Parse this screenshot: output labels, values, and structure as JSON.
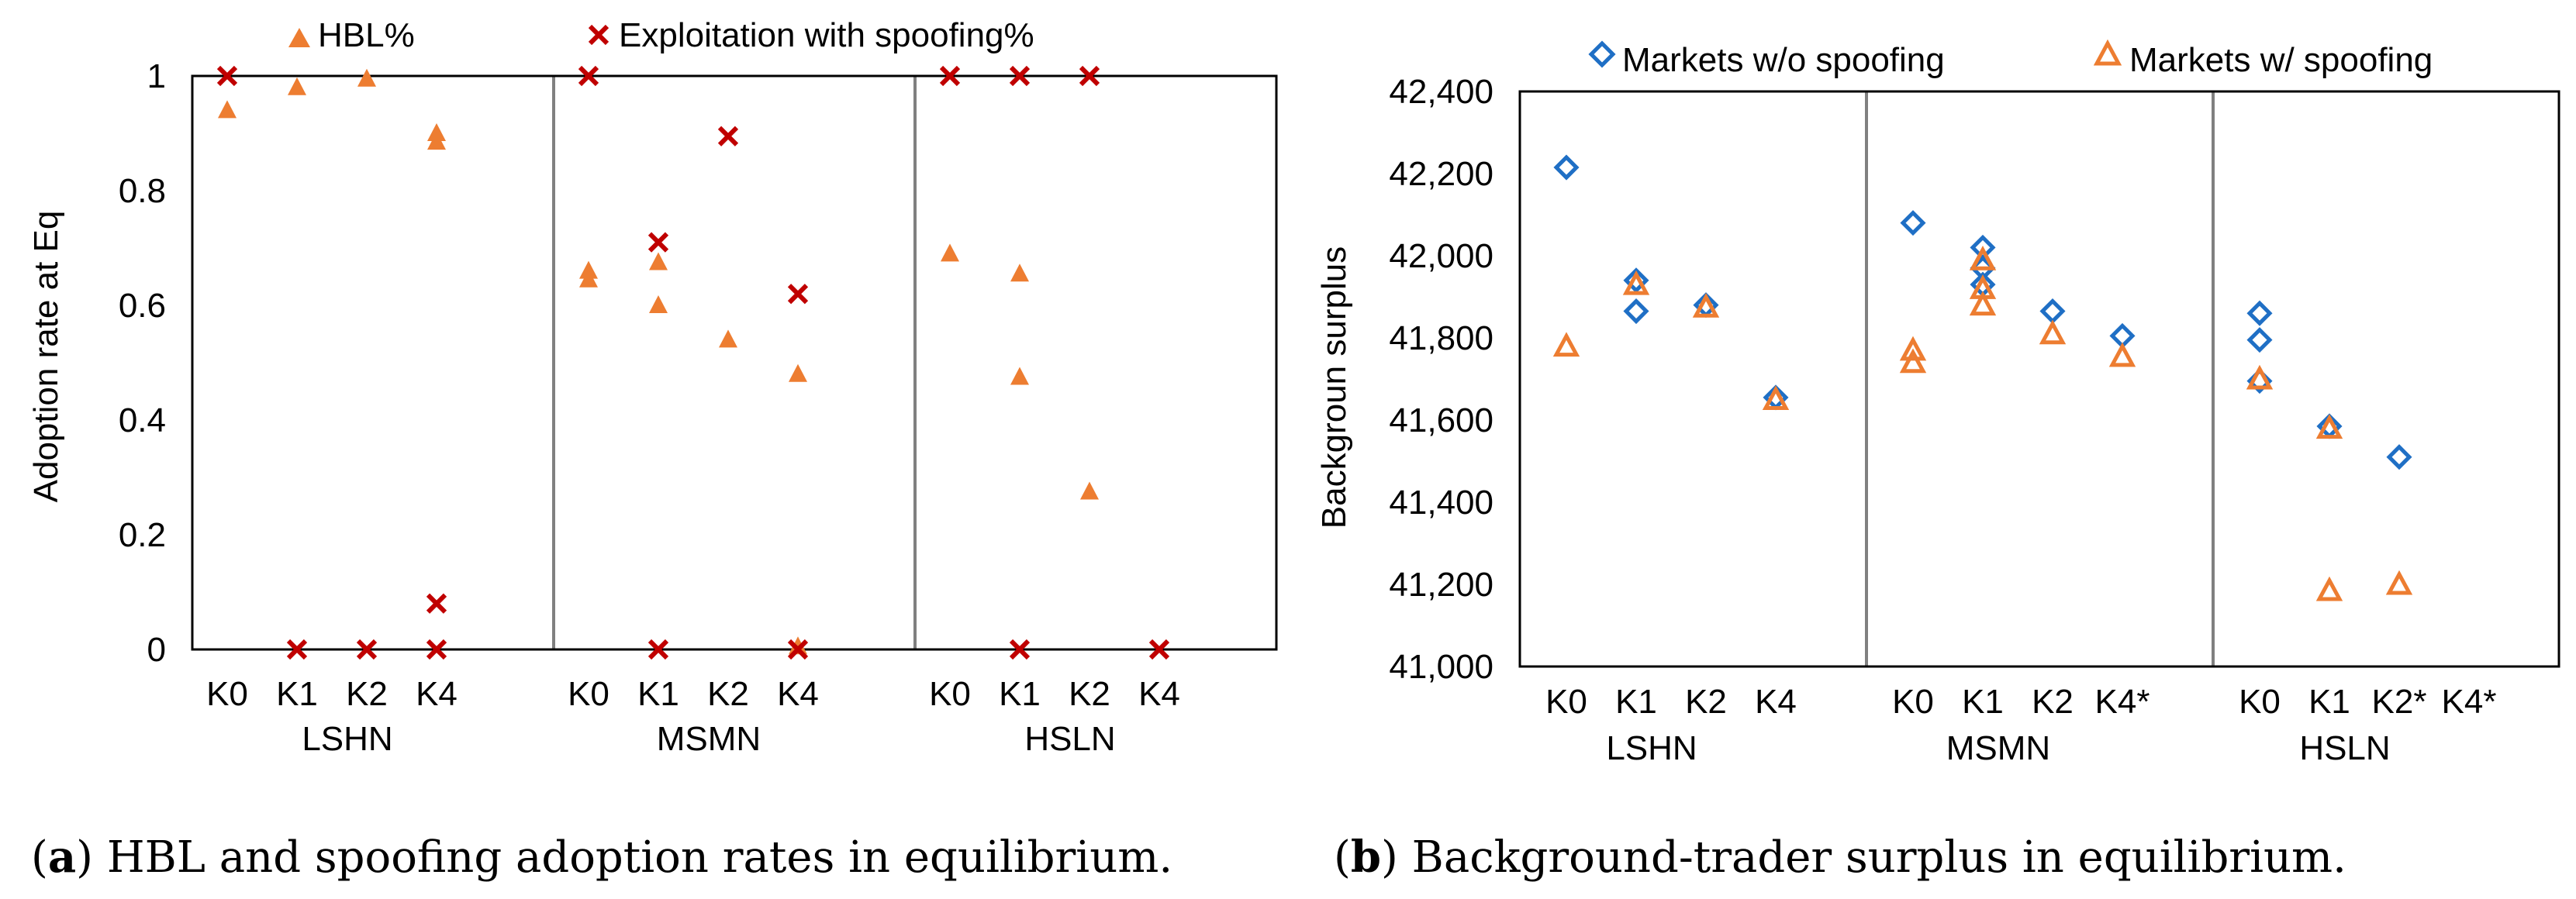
{
  "colors": {
    "orange": "#ED7D31",
    "red": "#C00000",
    "blue": "#1F6FC5",
    "axis": "#000000",
    "divider": "#808080"
  },
  "chart_data": [
    {
      "type": "scatter",
      "panel": "a",
      "caption_letter": "a",
      "caption_text": "HBL and spoofing adoption rates in equilibrium.",
      "ylabel": "Adoption rate at Eq",
      "ylim": [
        0,
        1
      ],
      "yticks": [
        0,
        0.2,
        0.4,
        0.6,
        0.8,
        1
      ],
      "ytick_labels": [
        "0",
        "0.2",
        "0.4",
        "0.6",
        "0.8",
        "1"
      ],
      "groups": [
        {
          "name": "LSHN",
          "categories": [
            "K0",
            "K1",
            "K2",
            "K4"
          ]
        },
        {
          "name": "MSMN",
          "categories": [
            "K0",
            "K1",
            "K2",
            "K4"
          ]
        },
        {
          "name": "HSLN",
          "categories": [
            "K0",
            "K1",
            "K2",
            "K4"
          ]
        }
      ],
      "series": [
        {
          "name": "HBL%",
          "marker": "triangle-filled",
          "color": "orange",
          "points": [
            {
              "group": 0,
              "cat": 0,
              "y": 0.94
            },
            {
              "group": 0,
              "cat": 1,
              "y": 0.98
            },
            {
              "group": 0,
              "cat": 2,
              "y": 0.995
            },
            {
              "group": 0,
              "cat": 3,
              "y": 0.9
            },
            {
              "group": 0,
              "cat": 3,
              "y": 0.885
            },
            {
              "group": 1,
              "cat": 0,
              "y": 0.66
            },
            {
              "group": 1,
              "cat": 0,
              "y": 0.645
            },
            {
              "group": 1,
              "cat": 1,
              "y": 0.675
            },
            {
              "group": 1,
              "cat": 1,
              "y": 0.6
            },
            {
              "group": 1,
              "cat": 2,
              "y": 0.54
            },
            {
              "group": 1,
              "cat": 3,
              "y": 0.48
            },
            {
              "group": 1,
              "cat": 3,
              "y": 0.005
            },
            {
              "group": 2,
              "cat": 0,
              "y": 0.69
            },
            {
              "group": 2,
              "cat": 1,
              "y": 0.655
            },
            {
              "group": 2,
              "cat": 1,
              "y": 0.475
            },
            {
              "group": 2,
              "cat": 2,
              "y": 0.275
            }
          ]
        },
        {
          "name": "Exploitation with spoofing%",
          "marker": "x",
          "color": "red",
          "points": [
            {
              "group": 0,
              "cat": 0,
              "y": 1.0
            },
            {
              "group": 0,
              "cat": 1,
              "y": 0.0
            },
            {
              "group": 0,
              "cat": 2,
              "y": 0.0
            },
            {
              "group": 0,
              "cat": 3,
              "y": 0.0
            },
            {
              "group": 0,
              "cat": 3,
              "y": 0.08
            },
            {
              "group": 1,
              "cat": 0,
              "y": 1.0
            },
            {
              "group": 1,
              "cat": 1,
              "y": 0.71
            },
            {
              "group": 1,
              "cat": 1,
              "y": 0.0
            },
            {
              "group": 1,
              "cat": 2,
              "y": 0.895
            },
            {
              "group": 1,
              "cat": 3,
              "y": 0.62
            },
            {
              "group": 1,
              "cat": 3,
              "y": 0.0
            },
            {
              "group": 2,
              "cat": 0,
              "y": 1.0
            },
            {
              "group": 2,
              "cat": 1,
              "y": 1.0
            },
            {
              "group": 2,
              "cat": 1,
              "y": 0.0
            },
            {
              "group": 2,
              "cat": 2,
              "y": 1.0
            },
            {
              "group": 2,
              "cat": 3,
              "y": 0.0
            }
          ]
        }
      ]
    },
    {
      "type": "scatter",
      "panel": "b",
      "caption_letter": "b",
      "caption_text": "Background-trader surplus in equilibrium.",
      "ylabel": "Backgroun surplus",
      "ylim": [
        41000,
        42400
      ],
      "yticks": [
        41000,
        41200,
        41400,
        41600,
        41800,
        42000,
        42200,
        42400
      ],
      "ytick_labels": [
        "41,000",
        "41,200",
        "41,400",
        "41,600",
        "41,800",
        "42,000",
        "42,200",
        "42,400"
      ],
      "groups": [
        {
          "name": "LSHN",
          "categories": [
            "K0",
            "K1",
            "K2",
            "K4"
          ]
        },
        {
          "name": "MSMN",
          "categories": [
            "K0",
            "K1",
            "K2",
            "K4*"
          ]
        },
        {
          "name": "HSLN",
          "categories": [
            "K0",
            "K1",
            "K2*",
            "K4*"
          ]
        }
      ],
      "series": [
        {
          "name": "Markets w/o spoofing",
          "marker": "diamond-open",
          "color": "blue",
          "points": [
            {
              "group": 0,
              "cat": 0,
              "y": 42215
            },
            {
              "group": 0,
              "cat": 1,
              "y": 41940
            },
            {
              "group": 0,
              "cat": 1,
              "y": 41865
            },
            {
              "group": 0,
              "cat": 2,
              "y": 41880
            },
            {
              "group": 0,
              "cat": 3,
              "y": 41655
            },
            {
              "group": 1,
              "cat": 0,
              "y": 42080
            },
            {
              "group": 1,
              "cat": 1,
              "y": 42020
            },
            {
              "group": 1,
              "cat": 1,
              "y": 41970
            },
            {
              "group": 1,
              "cat": 1,
              "y": 41930
            },
            {
              "group": 1,
              "cat": 2,
              "y": 41865
            },
            {
              "group": 1,
              "cat": 3,
              "y": 41805
            },
            {
              "group": 2,
              "cat": 0,
              "y": 41860
            },
            {
              "group": 2,
              "cat": 0,
              "y": 41795
            },
            {
              "group": 2,
              "cat": 0,
              "y": 41695
            },
            {
              "group": 2,
              "cat": 1,
              "y": 41585
            },
            {
              "group": 2,
              "cat": 2,
              "y": 41510
            }
          ]
        },
        {
          "name": "Markets w/ spoofing",
          "marker": "triangle-open",
          "color": "orange",
          "points": [
            {
              "group": 0,
              "cat": 0,
              "y": 41780
            },
            {
              "group": 0,
              "cat": 1,
              "y": 41930
            },
            {
              "group": 0,
              "cat": 2,
              "y": 41875
            },
            {
              "group": 0,
              "cat": 3,
              "y": 41650
            },
            {
              "group": 1,
              "cat": 0,
              "y": 41770
            },
            {
              "group": 1,
              "cat": 0,
              "y": 41740
            },
            {
              "group": 1,
              "cat": 1,
              "y": 41990
            },
            {
              "group": 1,
              "cat": 1,
              "y": 41920
            },
            {
              "group": 1,
              "cat": 1,
              "y": 41880
            },
            {
              "group": 1,
              "cat": 2,
              "y": 41810
            },
            {
              "group": 1,
              "cat": 3,
              "y": 41755
            },
            {
              "group": 2,
              "cat": 0,
              "y": 41700
            },
            {
              "group": 2,
              "cat": 1,
              "y": 41580
            },
            {
              "group": 2,
              "cat": 1,
              "y": 41185
            },
            {
              "group": 2,
              "cat": 2,
              "y": 41200
            }
          ]
        }
      ]
    }
  ]
}
